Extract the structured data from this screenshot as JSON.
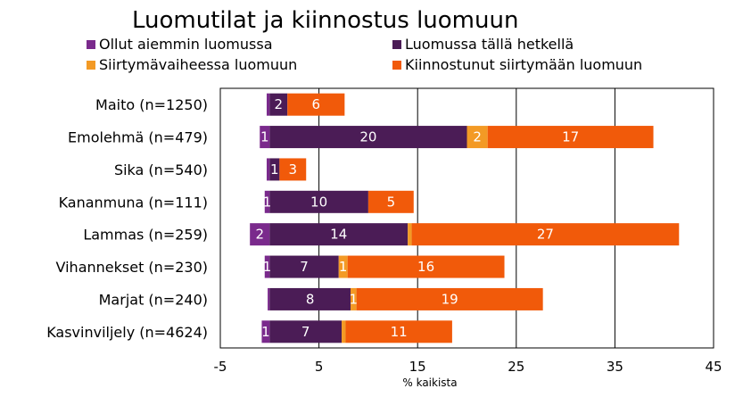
{
  "chart_data": {
    "type": "bar",
    "orientation": "horizontal",
    "stacked": true,
    "title": "Luomutilat ja kiinnostus luomuun",
    "xlabel": "% kaikista",
    "ylabel": "",
    "xlim": [
      -5,
      45
    ],
    "xticks": [
      -5,
      5,
      15,
      25,
      35,
      45
    ],
    "grid": "vertical",
    "legend_position": "top",
    "categories": [
      "Maito (n=1250)",
      "Emolehmä (n=479)",
      "Sika (n=540)",
      "Kananmuna (n=111)",
      "Lammas (n=259)",
      "Vihannekset (n=230)",
      "Marjat (n=240)",
      "Kasvinviljely (n=4624)"
    ],
    "series": [
      {
        "name": "Ollut aiemmin luomussa",
        "color": "#7a2a8c",
        "direction": "negative",
        "values": [
          0.3,
          1,
          0.3,
          0.5,
          2,
          0.5,
          0.2,
          0.8
        ],
        "labels": [
          "",
          "1",
          "",
          "1",
          "2",
          "1",
          "",
          "1"
        ]
      },
      {
        "name": "Luomussa tällä hetkellä",
        "color": "#4b1c56",
        "values": [
          1.8,
          20,
          1,
          10,
          14,
          7,
          8.2,
          7.3
        ],
        "labels": [
          "2",
          "20",
          "1",
          "10",
          "14",
          "7",
          "8",
          "7"
        ]
      },
      {
        "name": "Siirtymävaiheessa luomuun",
        "color": "#f39a25",
        "values": [
          0,
          2.1,
          0,
          0,
          0.4,
          0.9,
          0.6,
          0.4
        ],
        "labels": [
          "",
          "2",
          "",
          "",
          "",
          "1",
          "1",
          ""
        ]
      },
      {
        "name": "Kiinnostunut siirtymään luomuun",
        "color": "#f15a0a",
        "values": [
          5.8,
          16.8,
          2.7,
          4.6,
          27.1,
          15.9,
          18.9,
          10.8
        ],
        "labels": [
          "6",
          "17",
          "3",
          "5",
          "27",
          "16",
          "19",
          "11"
        ]
      }
    ]
  }
}
